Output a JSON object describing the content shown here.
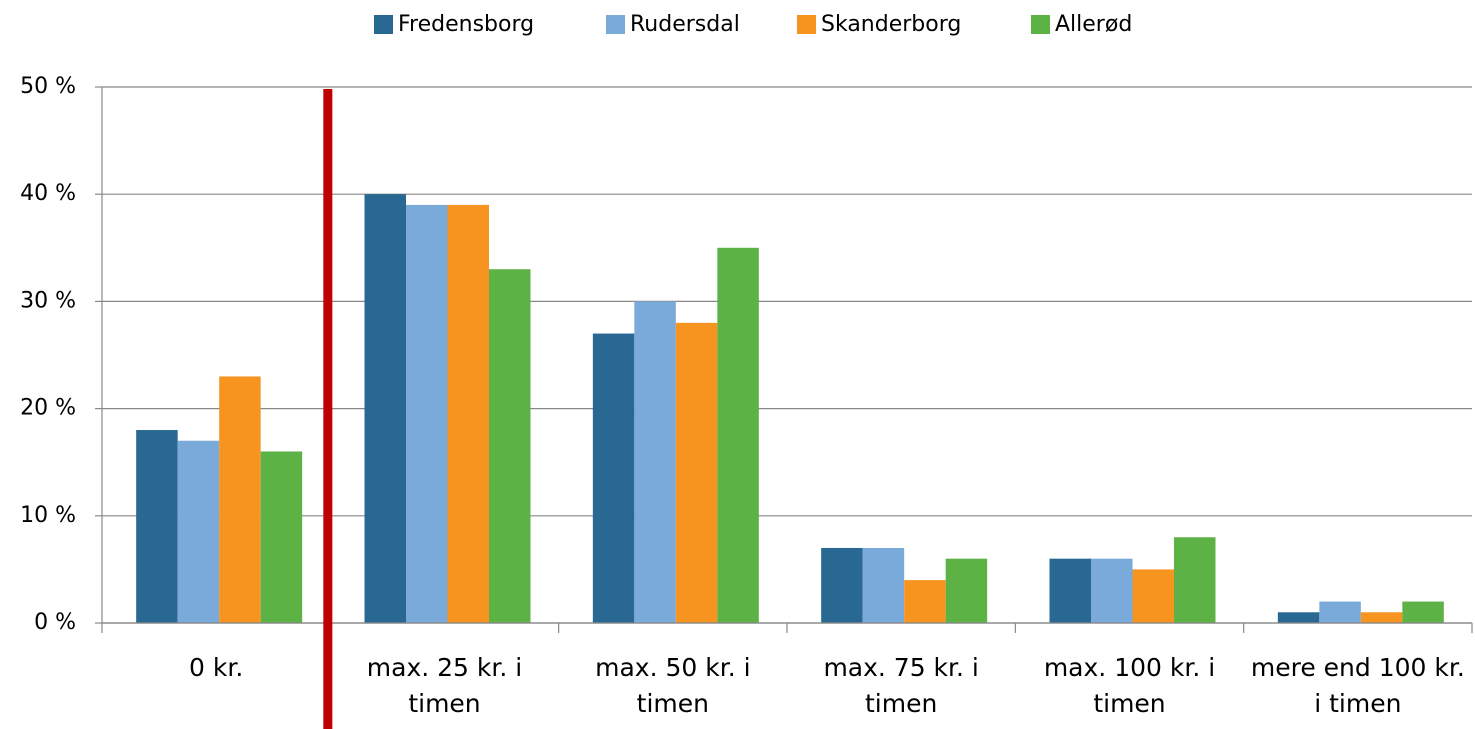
{
  "chart_data": {
    "type": "bar",
    "categories": [
      "0 kr.",
      "max. 25 kr. i timen",
      "max. 50 kr. i timen",
      "max. 75 kr. i timen",
      "max. 100 kr. i timen",
      "mere end 100 kr. i timen"
    ],
    "series": [
      {
        "name": "Fredensborg",
        "color": "#286892",
        "values": [
          18,
          40,
          27,
          7,
          6,
          1
        ]
      },
      {
        "name": "Rudersdal",
        "color": "#7aaad9",
        "values": [
          17,
          39,
          30,
          7,
          6,
          2
        ]
      },
      {
        "name": "Skanderborg",
        "color": "#f7941f",
        "values": [
          23,
          39,
          28,
          4,
          5,
          1
        ]
      },
      {
        "name": "Allerød",
        "color": "#5db246",
        "values": [
          16,
          33,
          35,
          6,
          8,
          2
        ]
      }
    ],
    "ylim": [
      0,
      50
    ],
    "yticks": [
      {
        "value": 0,
        "label": "0 %"
      },
      {
        "value": 10,
        "label": "10 %"
      },
      {
        "value": 20,
        "label": "20 %"
      },
      {
        "value": 30,
        "label": "30 %"
      },
      {
        "value": 40,
        "label": "40 %"
      },
      {
        "value": 50,
        "label": "50 %"
      }
    ],
    "grid": true,
    "legend": "top"
  }
}
